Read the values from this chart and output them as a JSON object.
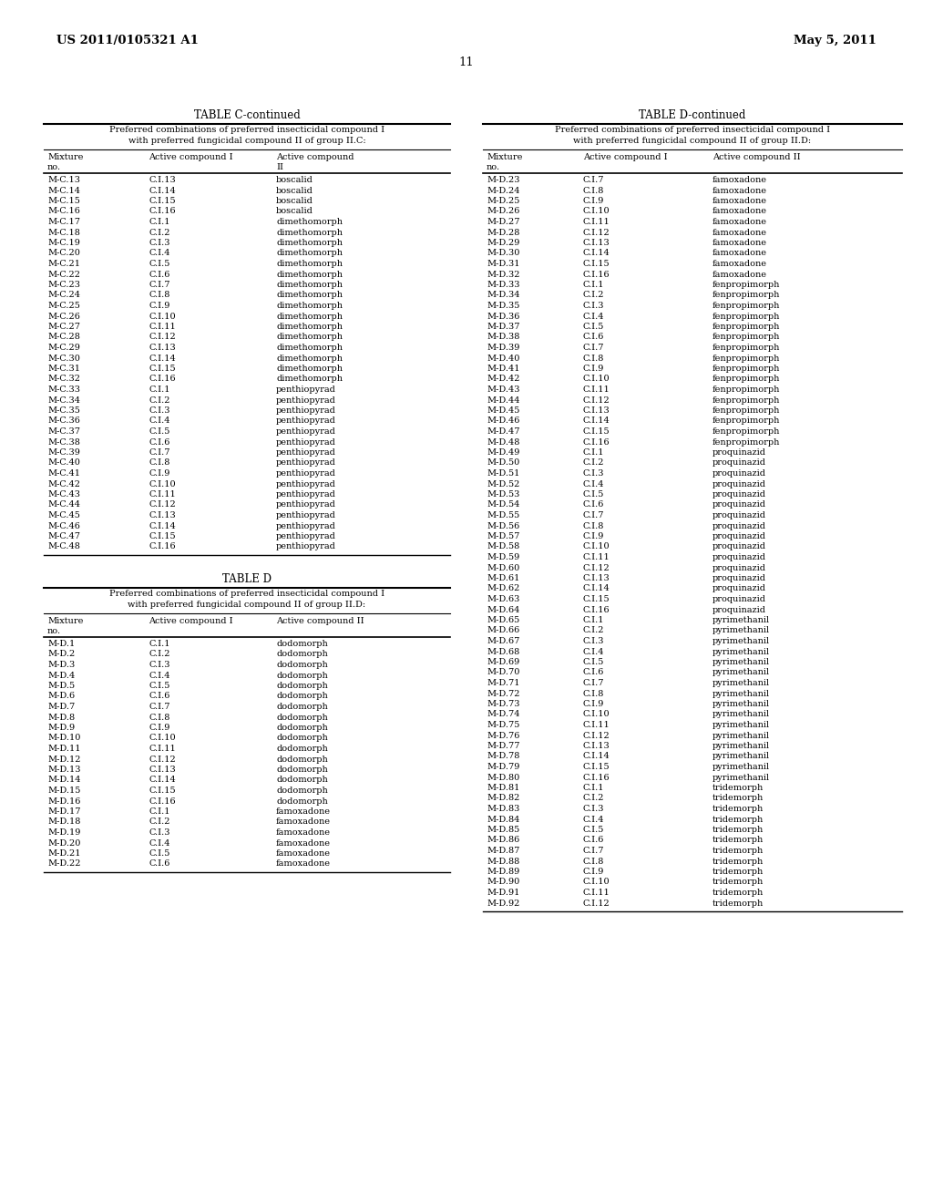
{
  "header_left": "US 2011/0105321 A1",
  "header_right": "May 5, 2011",
  "page_number": "11",
  "table_c_title": "TABLE C-continued",
  "table_c_subtitle": "Preferred combinations of preferred insecticidal compound I\nwith preferred fungicidal compound II of group II.C:",
  "table_c_data": [
    [
      "M-C.13",
      "C.I.13",
      "boscalid"
    ],
    [
      "M-C.14",
      "C.I.14",
      "boscalid"
    ],
    [
      "M-C.15",
      "C.I.15",
      "boscalid"
    ],
    [
      "M-C.16",
      "C.I.16",
      "boscalid"
    ],
    [
      "M-C.17",
      "C.I.1",
      "dimethomorph"
    ],
    [
      "M-C.18",
      "C.I.2",
      "dimethomorph"
    ],
    [
      "M-C.19",
      "C.I.3",
      "dimethomorph"
    ],
    [
      "M-C.20",
      "C.I.4",
      "dimethomorph"
    ],
    [
      "M-C.21",
      "C.I.5",
      "dimethomorph"
    ],
    [
      "M-C.22",
      "C.I.6",
      "dimethomorph"
    ],
    [
      "M-C.23",
      "C.I.7",
      "dimethomorph"
    ],
    [
      "M-C.24",
      "C.I.8",
      "dimethomorph"
    ],
    [
      "M-C.25",
      "C.I.9",
      "dimethomorph"
    ],
    [
      "M-C.26",
      "C.I.10",
      "dimethomorph"
    ],
    [
      "M-C.27",
      "C.I.11",
      "dimethomorph"
    ],
    [
      "M-C.28",
      "C.I.12",
      "dimethomorph"
    ],
    [
      "M-C.29",
      "C.I.13",
      "dimethomorph"
    ],
    [
      "M-C.30",
      "C.I.14",
      "dimethomorph"
    ],
    [
      "M-C.31",
      "C.I.15",
      "dimethomorph"
    ],
    [
      "M-C.32",
      "C.I.16",
      "dimethomorph"
    ],
    [
      "M-C.33",
      "C.I.1",
      "penthiopyrad"
    ],
    [
      "M-C.34",
      "C.I.2",
      "penthiopyrad"
    ],
    [
      "M-C.35",
      "C.I.3",
      "penthiopyrad"
    ],
    [
      "M-C.36",
      "C.I.4",
      "penthiopyrad"
    ],
    [
      "M-C.37",
      "C.I.5",
      "penthiopyrad"
    ],
    [
      "M-C.38",
      "C.I.6",
      "penthiopyrad"
    ],
    [
      "M-C.39",
      "C.I.7",
      "penthiopyrad"
    ],
    [
      "M-C.40",
      "C.I.8",
      "penthiopyrad"
    ],
    [
      "M-C.41",
      "C.I.9",
      "penthiopyrad"
    ],
    [
      "M-C.42",
      "C.I.10",
      "penthiopyrad"
    ],
    [
      "M-C.43",
      "C.I.11",
      "penthiopyrad"
    ],
    [
      "M-C.44",
      "C.I.12",
      "penthiopyrad"
    ],
    [
      "M-C.45",
      "C.I.13",
      "penthiopyrad"
    ],
    [
      "M-C.46",
      "C.I.14",
      "penthiopyrad"
    ],
    [
      "M-C.47",
      "C.I.15",
      "penthiopyrad"
    ],
    [
      "M-C.48",
      "C.I.16",
      "penthiopyrad"
    ]
  ],
  "table_d_title": "TABLE D",
  "table_d_subtitle": "Preferred combinations of preferred insecticidal compound I\nwith preferred fungicidal compound II of group II.D:",
  "table_d_data": [
    [
      "M-D.1",
      "C.I.1",
      "dodomorph"
    ],
    [
      "M-D.2",
      "C.I.2",
      "dodomorph"
    ],
    [
      "M-D.3",
      "C.I.3",
      "dodomorph"
    ],
    [
      "M-D.4",
      "C.I.4",
      "dodomorph"
    ],
    [
      "M-D.5",
      "C.I.5",
      "dodomorph"
    ],
    [
      "M-D.6",
      "C.I.6",
      "dodomorph"
    ],
    [
      "M-D.7",
      "C.I.7",
      "dodomorph"
    ],
    [
      "M-D.8",
      "C.I.8",
      "dodomorph"
    ],
    [
      "M-D.9",
      "C.I.9",
      "dodomorph"
    ],
    [
      "M-D.10",
      "C.I.10",
      "dodomorph"
    ],
    [
      "M-D.11",
      "C.I.11",
      "dodomorph"
    ],
    [
      "M-D.12",
      "C.I.12",
      "dodomorph"
    ],
    [
      "M-D.13",
      "C.I.13",
      "dodomorph"
    ],
    [
      "M-D.14",
      "C.I.14",
      "dodomorph"
    ],
    [
      "M-D.15",
      "C.I.15",
      "dodomorph"
    ],
    [
      "M-D.16",
      "C.I.16",
      "dodomorph"
    ],
    [
      "M-D.17",
      "C.I.1",
      "famoxadone"
    ],
    [
      "M-D.18",
      "C.I.2",
      "famoxadone"
    ],
    [
      "M-D.19",
      "C.I.3",
      "famoxadone"
    ],
    [
      "M-D.20",
      "C.I.4",
      "famoxadone"
    ],
    [
      "M-D.21",
      "C.I.5",
      "famoxadone"
    ],
    [
      "M-D.22",
      "C.I.6",
      "famoxadone"
    ]
  ],
  "table_d_cont_title": "TABLE D-continued",
  "table_d_cont_subtitle": "Preferred combinations of preferred insecticidal compound I\nwith preferred fungicidal compound II of group II.D:",
  "table_d_cont_data": [
    [
      "M-D.23",
      "C.I.7",
      "famoxadone"
    ],
    [
      "M-D.24",
      "C.I.8",
      "famoxadone"
    ],
    [
      "M-D.25",
      "C.I.9",
      "famoxadone"
    ],
    [
      "M-D.26",
      "C.I.10",
      "famoxadone"
    ],
    [
      "M-D.27",
      "C.I.11",
      "famoxadone"
    ],
    [
      "M-D.28",
      "C.I.12",
      "famoxadone"
    ],
    [
      "M-D.29",
      "C.I.13",
      "famoxadone"
    ],
    [
      "M-D.30",
      "C.I.14",
      "famoxadone"
    ],
    [
      "M-D.31",
      "C.I.15",
      "famoxadone"
    ],
    [
      "M-D.32",
      "C.I.16",
      "famoxadone"
    ],
    [
      "M-D.33",
      "C.I.1",
      "fenpropimorph"
    ],
    [
      "M-D.34",
      "C.I.2",
      "fenpropimorph"
    ],
    [
      "M-D.35",
      "C.I.3",
      "fenpropimorph"
    ],
    [
      "M-D.36",
      "C.I.4",
      "fenpropimorph"
    ],
    [
      "M-D.37",
      "C.I.5",
      "fenpropimorph"
    ],
    [
      "M-D.38",
      "C.I.6",
      "fenpropimorph"
    ],
    [
      "M-D.39",
      "C.I.7",
      "fenpropimorph"
    ],
    [
      "M-D.40",
      "C.I.8",
      "fenpropimorph"
    ],
    [
      "M-D.41",
      "C.I.9",
      "fenpropimorph"
    ],
    [
      "M-D.42",
      "C.I.10",
      "fenpropimorph"
    ],
    [
      "M-D.43",
      "C.I.11",
      "fenpropimorph"
    ],
    [
      "M-D.44",
      "C.I.12",
      "fenpropimorph"
    ],
    [
      "M-D.45",
      "C.I.13",
      "fenpropimorph"
    ],
    [
      "M-D.46",
      "C.I.14",
      "fenpropimorph"
    ],
    [
      "M-D.47",
      "C.I.15",
      "fenpropimorph"
    ],
    [
      "M-D.48",
      "C.I.16",
      "fenpropimorph"
    ],
    [
      "M-D.49",
      "C.I.1",
      "proquinazid"
    ],
    [
      "M-D.50",
      "C.I.2",
      "proquinazid"
    ],
    [
      "M-D.51",
      "C.I.3",
      "proquinazid"
    ],
    [
      "M-D.52",
      "C.I.4",
      "proquinazid"
    ],
    [
      "M-D.53",
      "C.I.5",
      "proquinazid"
    ],
    [
      "M-D.54",
      "C.I.6",
      "proquinazid"
    ],
    [
      "M-D.55",
      "C.I.7",
      "proquinazid"
    ],
    [
      "M-D.56",
      "C.I.8",
      "proquinazid"
    ],
    [
      "M-D.57",
      "C.I.9",
      "proquinazid"
    ],
    [
      "M-D.58",
      "C.I.10",
      "proquinazid"
    ],
    [
      "M-D.59",
      "C.I.11",
      "proquinazid"
    ],
    [
      "M-D.60",
      "C.I.12",
      "proquinazid"
    ],
    [
      "M-D.61",
      "C.I.13",
      "proquinazid"
    ],
    [
      "M-D.62",
      "C.I.14",
      "proquinazid"
    ],
    [
      "M-D.63",
      "C.I.15",
      "proquinazid"
    ],
    [
      "M-D.64",
      "C.I.16",
      "proquinazid"
    ],
    [
      "M-D.65",
      "C.I.1",
      "pyrimethanil"
    ],
    [
      "M-D.66",
      "C.I.2",
      "pyrimethanil"
    ],
    [
      "M-D.67",
      "C.I.3",
      "pyrimethanil"
    ],
    [
      "M-D.68",
      "C.I.4",
      "pyrimethanil"
    ],
    [
      "M-D.69",
      "C.I.5",
      "pyrimethanil"
    ],
    [
      "M-D.70",
      "C.I.6",
      "pyrimethanil"
    ],
    [
      "M-D.71",
      "C.I.7",
      "pyrimethanil"
    ],
    [
      "M-D.72",
      "C.I.8",
      "pyrimethanil"
    ],
    [
      "M-D.73",
      "C.I.9",
      "pyrimethanil"
    ],
    [
      "M-D.74",
      "C.I.10",
      "pyrimethanil"
    ],
    [
      "M-D.75",
      "C.I.11",
      "pyrimethanil"
    ],
    [
      "M-D.76",
      "C.I.12",
      "pyrimethanil"
    ],
    [
      "M-D.77",
      "C.I.13",
      "pyrimethanil"
    ],
    [
      "M-D.78",
      "C.I.14",
      "pyrimethanil"
    ],
    [
      "M-D.79",
      "C.I.15",
      "pyrimethanil"
    ],
    [
      "M-D.80",
      "C.I.16",
      "pyrimethanil"
    ],
    [
      "M-D.81",
      "C.I.1",
      "tridemorph"
    ],
    [
      "M-D.82",
      "C.I.2",
      "tridemorph"
    ],
    [
      "M-D.83",
      "C.I.3",
      "tridemorph"
    ],
    [
      "M-D.84",
      "C.I.4",
      "tridemorph"
    ],
    [
      "M-D.85",
      "C.I.5",
      "tridemorph"
    ],
    [
      "M-D.86",
      "C.I.6",
      "tridemorph"
    ],
    [
      "M-D.87",
      "C.I.7",
      "tridemorph"
    ],
    [
      "M-D.88",
      "C.I.8",
      "tridemorph"
    ],
    [
      "M-D.89",
      "C.I.9",
      "tridemorph"
    ],
    [
      "M-D.90",
      "C.I.10",
      "tridemorph"
    ],
    [
      "M-D.91",
      "C.I.11",
      "tridemorph"
    ],
    [
      "M-D.92",
      "C.I.12",
      "tridemorph"
    ]
  ],
  "bg_color": "#ffffff",
  "text_color": "#000000",
  "font_size": 7.0,
  "title_font_size": 8.5,
  "header_font_size": 9.5
}
